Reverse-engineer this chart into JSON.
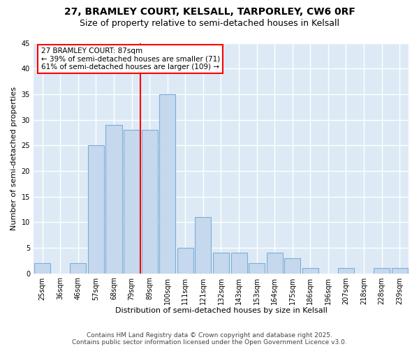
{
  "title1": "27, BRAMLEY COURT, KELSALL, TARPORLEY, CW6 0RF",
  "title2": "Size of property relative to semi-detached houses in Kelsall",
  "xlabel": "Distribution of semi-detached houses by size in Kelsall",
  "ylabel": "Number of semi-detached properties",
  "categories": [
    "25sqm",
    "36sqm",
    "46sqm",
    "57sqm",
    "68sqm",
    "79sqm",
    "89sqm",
    "100sqm",
    "111sqm",
    "121sqm",
    "132sqm",
    "143sqm",
    "153sqm",
    "164sqm",
    "175sqm",
    "186sqm",
    "196sqm",
    "207sqm",
    "218sqm",
    "228sqm",
    "239sqm"
  ],
  "values": [
    2,
    0,
    2,
    25,
    29,
    28,
    28,
    35,
    5,
    11,
    4,
    4,
    2,
    4,
    3,
    1,
    0,
    1,
    0,
    1,
    1
  ],
  "bar_color": "#c5d8ed",
  "bar_edge_color": "#7bafd4",
  "annotation_line1": "27 BRAMLEY COURT: 87sqm",
  "annotation_line2": "← 39% of semi-detached houses are smaller (71)",
  "annotation_line3": "61% of semi-detached houses are larger (109) →",
  "ylim": [
    0,
    45
  ],
  "yticks": [
    0,
    5,
    10,
    15,
    20,
    25,
    30,
    35,
    40,
    45
  ],
  "footnote1": "Contains HM Land Registry data © Crown copyright and database right 2025.",
  "footnote2": "Contains public sector information licensed under the Open Government Licence v3.0.",
  "bg_color": "#ffffff",
  "plot_bg_color": "#ddeaf6",
  "grid_color": "#ffffff",
  "title1_fontsize": 10,
  "title2_fontsize": 9,
  "label_fontsize": 8,
  "tick_fontsize": 7,
  "annot_fontsize": 7.5,
  "footnote_fontsize": 6.5
}
